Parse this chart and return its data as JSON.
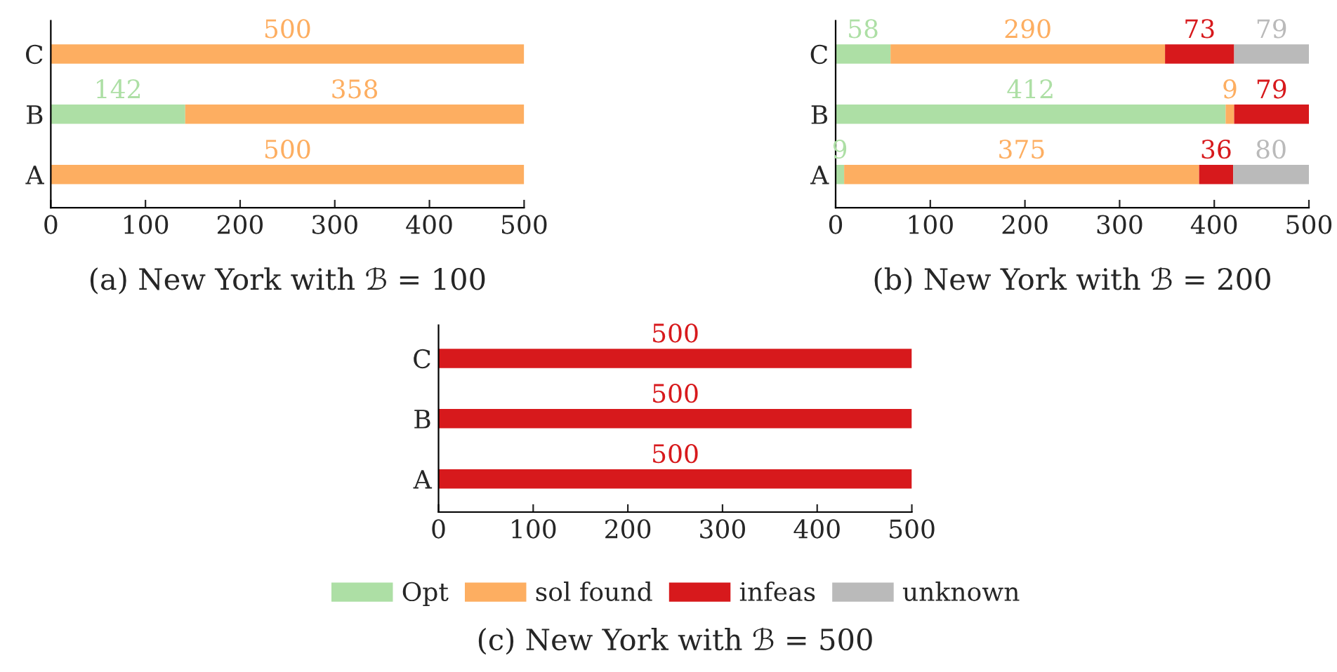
{
  "chart_data": [
    {
      "type": "bar",
      "orientation": "horizontal",
      "stacked": true,
      "title": "(a) New York with ℬ = 100",
      "categories": [
        "C",
        "B",
        "A"
      ],
      "xlim": [
        0,
        500
      ],
      "xticks": [
        0,
        100,
        200,
        300,
        400,
        500
      ],
      "series": [
        {
          "color": "#addfa5",
          "values": [
            0,
            142,
            0
          ],
          "value_labels": [
            null,
            "142",
            null
          ]
        },
        {
          "color": "#fdae61",
          "values": [
            500,
            358,
            500
          ],
          "value_labels": [
            "500",
            "358",
            "500"
          ]
        }
      ]
    },
    {
      "type": "bar",
      "orientation": "horizontal",
      "stacked": true,
      "title": "(b) New York with ℬ = 200",
      "categories": [
        "C",
        "B",
        "A"
      ],
      "xlim": [
        0,
        500
      ],
      "xticks": [
        0,
        100,
        200,
        300,
        400,
        500
      ],
      "series": [
        {
          "color": "#addfa5",
          "values": [
            58,
            412,
            9
          ],
          "value_labels": [
            "58",
            "412",
            "9"
          ]
        },
        {
          "color": "#fdae61",
          "values": [
            290,
            9,
            375
          ],
          "value_labels": [
            "290",
            "9",
            "375"
          ]
        },
        {
          "color": "#d7191c",
          "values": [
            73,
            79,
            36
          ],
          "value_labels": [
            "73",
            "79",
            "36"
          ]
        },
        {
          "color": "#bababa",
          "values": [
            79,
            0,
            80
          ],
          "value_labels": [
            "79",
            null,
            "80"
          ]
        }
      ]
    },
    {
      "type": "bar",
      "orientation": "horizontal",
      "stacked": true,
      "title": "(c) New York with ℬ = 500",
      "categories": [
        "C",
        "B",
        "A"
      ],
      "xlim": [
        0,
        500
      ],
      "xticks": [
        0,
        100,
        200,
        300,
        400,
        500
      ],
      "legend": "bottom",
      "series": [
        {
          "name": "Opt",
          "color": "#addfa5",
          "values": [
            0,
            0,
            0
          ],
          "value_labels": [
            null,
            null,
            null
          ]
        },
        {
          "name": "sol found",
          "color": "#fdae61",
          "values": [
            0,
            0,
            0
          ],
          "value_labels": [
            null,
            null,
            null
          ]
        },
        {
          "name": "infeas",
          "color": "#d7191c",
          "values": [
            500,
            500,
            500
          ],
          "value_labels": [
            "500",
            "500",
            "500"
          ]
        },
        {
          "name": "unknown",
          "color": "#bababa",
          "values": [
            0,
            0,
            0
          ],
          "value_labels": [
            null,
            null,
            null
          ]
        }
      ]
    }
  ]
}
